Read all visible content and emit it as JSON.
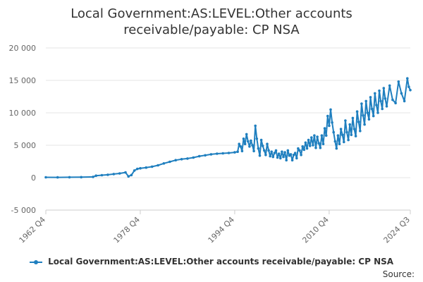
{
  "chart_data": {
    "type": "line",
    "title_lines": [
      "Local Government:AS:LEVEL:Other accounts",
      "receivable/payable: CP NSA"
    ],
    "xlabel": "",
    "ylabel": "",
    "x_tick_labels": [
      "1962 Q4",
      "1978 Q4",
      "1994 Q4",
      "2010 Q4",
      "2024 Q3"
    ],
    "y_ticks": [
      -5000,
      0,
      5000,
      10000,
      15000,
      20000
    ],
    "y_tick_labels": [
      "-5 000",
      "0",
      "5 000",
      "10 000",
      "15 000",
      "20 000"
    ],
    "ylim": [
      -5000,
      20000
    ],
    "x_range": [
      "1962 Q4",
      "2024 Q3"
    ],
    "grid": "horizontal",
    "legend_position": "bottom",
    "color": "#1f7fbf",
    "series": [
      {
        "name": "Local Government:AS:LEVEL:Other accounts receivable/payable: CP NSA",
        "points": [
          [
            "1962 Q4",
            50
          ],
          [
            "1964 Q4",
            40
          ],
          [
            "1966 Q4",
            60
          ],
          [
            "1968 Q4",
            80
          ],
          [
            "1970 Q4",
            120
          ],
          [
            "1971 Q2",
            300
          ],
          [
            "1972 Q2",
            380
          ],
          [
            "1973 Q2",
            450
          ],
          [
            "1974 Q2",
            550
          ],
          [
            "1975 Q2",
            650
          ],
          [
            "1976 Q2",
            800
          ],
          [
            "1976 Q4",
            200
          ],
          [
            "1977 Q2",
            400
          ],
          [
            "1977 Q4",
            1100
          ],
          [
            "1978 Q2",
            1350
          ],
          [
            "1978 Q4",
            1450
          ],
          [
            "1979 Q4",
            1550
          ],
          [
            "1980 Q4",
            1700
          ],
          [
            "1981 Q4",
            1900
          ],
          [
            "1982 Q4",
            2200
          ],
          [
            "1983 Q4",
            2450
          ],
          [
            "1984 Q4",
            2700
          ],
          [
            "1985 Q4",
            2850
          ],
          [
            "1986 Q4",
            2950
          ],
          [
            "1987 Q4",
            3100
          ],
          [
            "1988 Q4",
            3300
          ],
          [
            "1989 Q4",
            3450
          ],
          [
            "1990 Q4",
            3600
          ],
          [
            "1991 Q4",
            3700
          ],
          [
            "1992 Q4",
            3750
          ],
          [
            "1993 Q4",
            3800
          ],
          [
            "1994 Q4",
            3900
          ],
          [
            "1995 Q2",
            4000
          ],
          [
            "1995 Q3",
            5200
          ],
          [
            "1995 Q4",
            4800
          ],
          [
            "1996 Q1",
            4100
          ],
          [
            "1996 Q2",
            6000
          ],
          [
            "1996 Q3",
            5200
          ],
          [
            "1996 Q4",
            6700
          ],
          [
            "1997 Q1",
            5600
          ],
          [
            "1997 Q2",
            4800
          ],
          [
            "1997 Q3",
            5700
          ],
          [
            "1997 Q4",
            5000
          ],
          [
            "1998 Q1",
            4100
          ],
          [
            "1998 Q2",
            8000
          ],
          [
            "1998 Q3",
            6000
          ],
          [
            "1998 Q4",
            4500
          ],
          [
            "1999 Q1",
            3400
          ],
          [
            "1999 Q2",
            5800
          ],
          [
            "1999 Q3",
            4900
          ],
          [
            "1999 Q4",
            4200
          ],
          [
            "2000 Q1",
            3500
          ],
          [
            "2000 Q2",
            5200
          ],
          [
            "2000 Q3",
            4200
          ],
          [
            "2000 Q4",
            3300
          ],
          [
            "2001 Q1",
            4000
          ],
          [
            "2001 Q2",
            3200
          ],
          [
            "2001 Q3",
            3800
          ],
          [
            "2001 Q4",
            4200
          ],
          [
            "2002 Q1",
            3100
          ],
          [
            "2002 Q2",
            3700
          ],
          [
            "2002 Q3",
            3000
          ],
          [
            "2002 Q4",
            4000
          ],
          [
            "2003 Q1",
            3200
          ],
          [
            "2003 Q2",
            3900
          ],
          [
            "2003 Q3",
            2700
          ],
          [
            "2003 Q4",
            4200
          ],
          [
            "2004 Q1",
            3400
          ],
          [
            "2004 Q2",
            3600
          ],
          [
            "2004 Q3",
            2700
          ],
          [
            "2004 Q4",
            3500
          ],
          [
            "2005 Q1",
            3800
          ],
          [
            "2005 Q2",
            3000
          ],
          [
            "2005 Q3",
            4500
          ],
          [
            "2005 Q4",
            4200
          ],
          [
            "2006 Q1",
            3500
          ],
          [
            "2006 Q2",
            4800
          ],
          [
            "2006 Q3",
            4300
          ],
          [
            "2006 Q4",
            5400
          ],
          [
            "2007 Q1",
            4500
          ],
          [
            "2007 Q2",
            5800
          ],
          [
            "2007 Q3",
            4900
          ],
          [
            "2007 Q4",
            6200
          ],
          [
            "2008 Q1",
            5000
          ],
          [
            "2008 Q2",
            6500
          ],
          [
            "2008 Q3",
            4600
          ],
          [
            "2008 Q4",
            6300
          ],
          [
            "2009 Q1",
            5300
          ],
          [
            "2009 Q2",
            4600
          ],
          [
            "2009 Q3",
            6500
          ],
          [
            "2009 Q4",
            5200
          ],
          [
            "2010 Q1",
            7600
          ],
          [
            "2010 Q2",
            6500
          ],
          [
            "2010 Q3",
            9500
          ],
          [
            "2010 Q4",
            8000
          ],
          [
            "2011 Q1",
            10500
          ],
          [
            "2011 Q2",
            8500
          ],
          [
            "2011 Q3",
            7000
          ],
          [
            "2011 Q4",
            5600
          ],
          [
            "2012 Q1",
            4500
          ],
          [
            "2012 Q2",
            6500
          ],
          [
            "2012 Q3",
            5200
          ],
          [
            "2012 Q4",
            7500
          ],
          [
            "2013 Q1",
            6600
          ],
          [
            "2013 Q2",
            5500
          ],
          [
            "2013 Q3",
            8800
          ],
          [
            "2013 Q4",
            7000
          ],
          [
            "2014 Q1",
            5800
          ],
          [
            "2014 Q2",
            8200
          ],
          [
            "2014 Q3",
            6600
          ],
          [
            "2014 Q4",
            9200
          ],
          [
            "2015 Q1",
            7500
          ],
          [
            "2015 Q2",
            6400
          ],
          [
            "2015 Q3",
            10200
          ],
          [
            "2015 Q4",
            8600
          ],
          [
            "2016 Q1",
            7200
          ],
          [
            "2016 Q2",
            11400
          ],
          [
            "2016 Q3",
            9600
          ],
          [
            "2016 Q4",
            8200
          ],
          [
            "2017 Q1",
            11800
          ],
          [
            "2017 Q2",
            10000
          ],
          [
            "2017 Q3",
            9000
          ],
          [
            "2017 Q4",
            12400
          ],
          [
            "2018 Q1",
            10600
          ],
          [
            "2018 Q2",
            9500
          ],
          [
            "2018 Q3",
            13000
          ],
          [
            "2018 Q4",
            11200
          ],
          [
            "2019 Q1",
            10000
          ],
          [
            "2019 Q2",
            13400
          ],
          [
            "2019 Q3",
            11800
          ],
          [
            "2019 Q4",
            10600
          ],
          [
            "2020 Q1",
            13800
          ],
          [
            "2020 Q2",
            12200
          ],
          [
            "2020 Q3",
            11000
          ],
          [
            "2021 Q1",
            14200
          ],
          [
            "2021 Q3",
            12000
          ],
          [
            "2022 Q1",
            11500
          ],
          [
            "2022 Q3",
            14800
          ],
          [
            "2023 Q1",
            13000
          ],
          [
            "2023 Q3",
            11800
          ],
          [
            "2024 Q1",
            15300
          ],
          [
            "2024 Q2",
            14000
          ],
          [
            "2024 Q3",
            13500
          ]
        ]
      }
    ]
  },
  "source_label": "Source:"
}
